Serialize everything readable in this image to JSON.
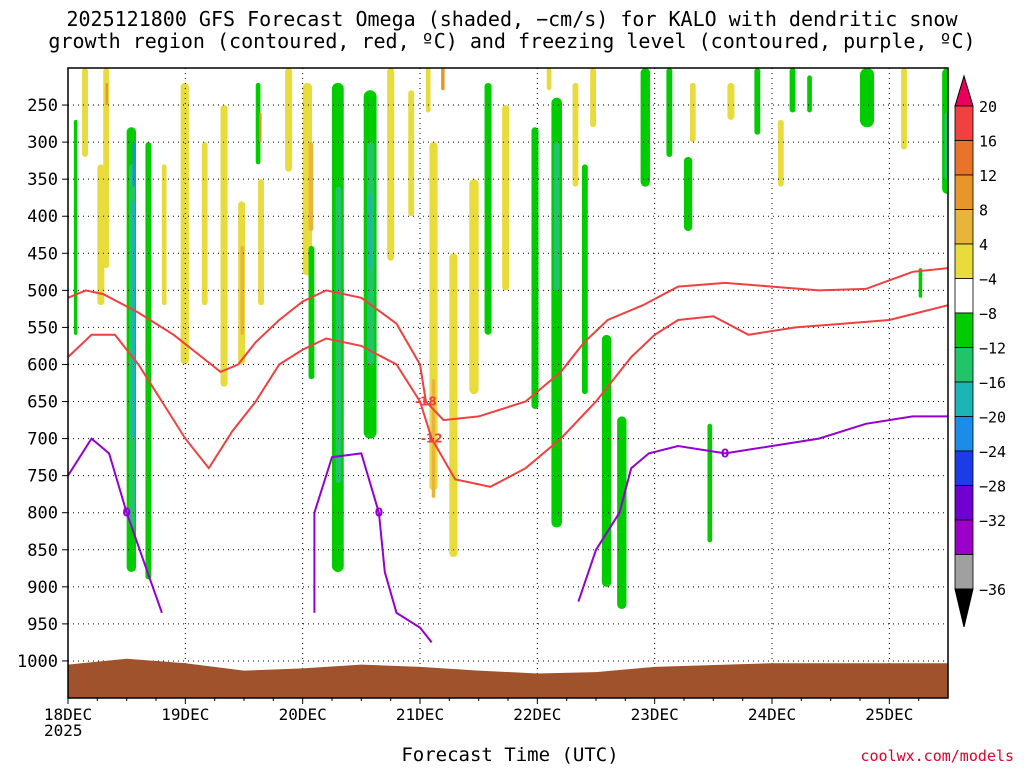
{
  "title_line1": "2025121800 GFS Forecast Omega (shaded, −cm/s) for KALO with dendritic snow",
  "title_line2": "growth region (contoured, red, ºC) and freezing level (contoured, purple, ºC)",
  "xlabel": "Forecast Time (UTC)",
  "year_label": "2025",
  "credit": "coolwx.com/models",
  "colors": {
    "red_contour": "#f04040",
    "purple_contour": "#9400d3",
    "ground": "#a0522d",
    "shade_4": "#e8dc3c",
    "shade_8": "#e8b43c",
    "shade_12": "#e8962c",
    "shade_16": "#e8742c",
    "neg_4": "#00cc00",
    "neg_8": "#22c46a",
    "neg_12": "#1cb4b4",
    "neg_16": "#1c8ce8",
    "neg_20": "#1c3ce8"
  },
  "chart_data": {
    "type": "heatmap",
    "title": "2025121800 GFS Forecast Omega (shaded, −cm/s) for KALO with dendritic snow growth region (contoured, red, ºC) and freezing level (contoured, purple, ºC)",
    "xlabel": "Forecast Time (UTC)",
    "ylabel": "",
    "x_ticks": [
      "18DEC",
      "19DEC",
      "20DEC",
      "21DEC",
      "22DEC",
      "23DEC",
      "24DEC",
      "25DEC"
    ],
    "x_range_days": [
      0,
      7.5
    ],
    "y_ticks": [
      250,
      300,
      350,
      400,
      450,
      500,
      550,
      600,
      650,
      700,
      750,
      800,
      850,
      900,
      950,
      1000
    ],
    "y_range_hpa": [
      1050,
      200
    ],
    "colorbar": {
      "labels": [
        "20",
        "16",
        "12",
        "8",
        "4",
        "−4",
        "−8",
        "−12",
        "−16",
        "−20",
        "−24",
        "−28",
        "−32",
        "−36"
      ],
      "colors": [
        "#e8005a",
        "#f04040",
        "#e8742c",
        "#e8962c",
        "#e8b43c",
        "#e8dc3c",
        "#ffffff",
        "#00cc00",
        "#22c46a",
        "#1cb4b4",
        "#1c8ce8",
        "#1c3ce8",
        "#7000d0",
        "#9a00c8",
        "#a0a0a0",
        "#000000"
      ]
    },
    "contours": [
      {
        "series": "dendritic snow growth",
        "value": -18,
        "label": "-18",
        "points": [
          [
            0.0,
            510
          ],
          [
            0.15,
            500
          ],
          [
            0.3,
            505
          ],
          [
            0.6,
            530
          ],
          [
            0.9,
            560
          ],
          [
            1.1,
            585
          ],
          [
            1.3,
            610
          ],
          [
            1.45,
            600
          ],
          [
            1.6,
            570
          ],
          [
            1.8,
            540
          ],
          [
            2.0,
            515
          ],
          [
            2.2,
            500
          ],
          [
            2.5,
            510
          ],
          [
            2.8,
            545
          ],
          [
            3.0,
            600
          ],
          [
            3.05,
            650
          ],
          [
            3.2,
            675
          ],
          [
            3.5,
            670
          ],
          [
            3.9,
            650
          ],
          [
            4.2,
            610
          ],
          [
            4.4,
            570
          ],
          [
            4.6,
            540
          ],
          [
            4.9,
            520
          ],
          [
            5.2,
            495
          ],
          [
            5.6,
            490
          ],
          [
            6.0,
            495
          ],
          [
            6.4,
            500
          ],
          [
            6.8,
            498
          ],
          [
            7.2,
            475
          ],
          [
            7.5,
            470
          ]
        ]
      },
      {
        "series": "dendritic snow growth",
        "value": -12,
        "label": "-12",
        "points": [
          [
            0.0,
            590
          ],
          [
            0.2,
            560
          ],
          [
            0.4,
            560
          ],
          [
            0.6,
            600
          ],
          [
            0.8,
            650
          ],
          [
            1.0,
            700
          ],
          [
            1.2,
            740
          ],
          [
            1.4,
            690
          ],
          [
            1.6,
            650
          ],
          [
            1.8,
            600
          ],
          [
            2.0,
            580
          ],
          [
            2.2,
            565
          ],
          [
            2.5,
            575
          ],
          [
            2.8,
            600
          ],
          [
            3.0,
            650
          ],
          [
            3.1,
            700
          ],
          [
            3.3,
            755
          ],
          [
            3.6,
            765
          ],
          [
            3.9,
            740
          ],
          [
            4.2,
            700
          ],
          [
            4.5,
            650
          ],
          [
            4.8,
            590
          ],
          [
            5.0,
            560
          ],
          [
            5.2,
            540
          ],
          [
            5.5,
            535
          ],
          [
            5.8,
            560
          ],
          [
            6.2,
            550
          ],
          [
            6.6,
            545
          ],
          [
            7.0,
            540
          ],
          [
            7.5,
            520
          ]
        ]
      },
      {
        "series": "freezing level",
        "value": 0,
        "label": "0",
        "points": [
          [
            0.0,
            750
          ],
          [
            0.2,
            700
          ],
          [
            0.35,
            720
          ],
          [
            0.5,
            800
          ],
          [
            0.7,
            890
          ],
          [
            0.8,
            935
          ]
        ]
      },
      {
        "series": "freezing level",
        "value": 0,
        "label": "0",
        "points": [
          [
            2.1,
            935
          ],
          [
            2.1,
            800
          ],
          [
            2.25,
            725
          ],
          [
            2.5,
            720
          ],
          [
            2.65,
            800
          ],
          [
            2.7,
            880
          ],
          [
            2.8,
            935
          ],
          [
            3.0,
            955
          ],
          [
            3.1,
            975
          ]
        ]
      },
      {
        "series": "freezing level",
        "value": 0,
        "label": "0",
        "points": [
          [
            4.35,
            920
          ],
          [
            4.5,
            850
          ],
          [
            4.7,
            800
          ],
          [
            4.8,
            740
          ],
          [
            4.95,
            720
          ],
          [
            5.2,
            710
          ],
          [
            5.6,
            720
          ],
          [
            6.0,
            710
          ],
          [
            6.4,
            700
          ],
          [
            6.8,
            680
          ],
          [
            7.2,
            670
          ],
          [
            7.5,
            670
          ]
        ]
      }
    ]
  }
}
